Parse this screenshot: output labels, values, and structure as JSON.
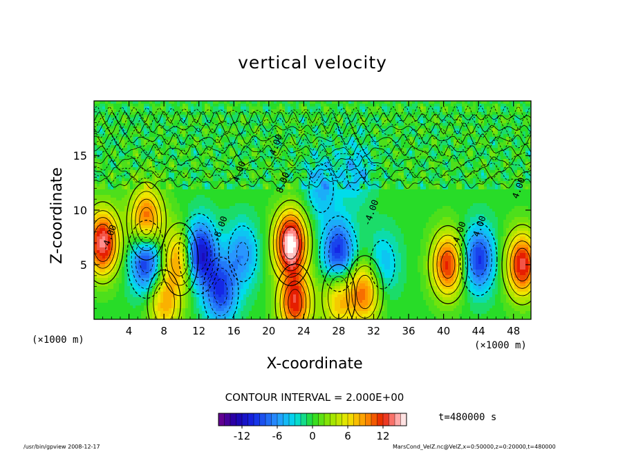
{
  "chart_data": {
    "type": "heatmap",
    "title": "vertical velocity",
    "xlabel": "X-coordinate",
    "ylabel": "Z-coordinate",
    "x_unit_left": "(×1000 m)",
    "x_unit_right": "(×1000 m)",
    "xlim": [
      0,
      50
    ],
    "ylim": [
      0,
      20
    ],
    "x_ticks": [
      4,
      8,
      12,
      16,
      20,
      24,
      28,
      32,
      36,
      40,
      44,
      48
    ],
    "y_ticks": [
      5,
      10,
      15
    ],
    "contour_interval": "CONTOUR INTERVAL = 2.000E+00",
    "time": "t=480000 s",
    "colorbar": {
      "ticks": [
        -12,
        -6,
        0,
        6,
        12
      ],
      "min": -16,
      "max": 16,
      "step": 1
    },
    "contour_labels": [
      "4.00",
      "8.00",
      "-8.00",
      "-4.00",
      "4.00",
      "-4.00",
      "-4.00",
      "4.00",
      "-4.00"
    ],
    "features": [
      {
        "x": 1,
        "z": 7,
        "w": 14
      },
      {
        "x": 6,
        "z": 9,
        "w": 12
      },
      {
        "x": 6,
        "z": 5.5,
        "w": -12
      },
      {
        "x": 9.8,
        "z": 5.5,
        "w": 10
      },
      {
        "x": 12,
        "z": 6,
        "w": -13
      },
      {
        "x": 14.5,
        "z": 2.5,
        "w": -9
      },
      {
        "x": 8,
        "z": 1.5,
        "w": 8
      },
      {
        "x": 17,
        "z": 6,
        "w": -6
      },
      {
        "x": 22.5,
        "z": 7,
        "w": 16
      },
      {
        "x": 23,
        "z": 1.5,
        "w": 12
      },
      {
        "x": 28,
        "z": 6,
        "w": -11
      },
      {
        "x": 28,
        "z": 2,
        "w": 8
      },
      {
        "x": 31,
        "z": 2.5,
        "w": 10
      },
      {
        "x": 33,
        "z": 5,
        "w": -5
      },
      {
        "x": 40.5,
        "z": 5,
        "w": 12
      },
      {
        "x": 44,
        "z": 5.5,
        "w": -10
      },
      {
        "x": 49,
        "z": 5,
        "w": 13
      },
      {
        "x": 30,
        "z": 13.5,
        "w": -4
      },
      {
        "x": 26,
        "z": 12,
        "w": -5
      }
    ]
  },
  "footer": {
    "left": "/usr/bin/gpview   2008-12-17",
    "right": "MarsCond_VelZ.nc@VelZ,x=0:50000,z=0:20000,t=480000"
  }
}
